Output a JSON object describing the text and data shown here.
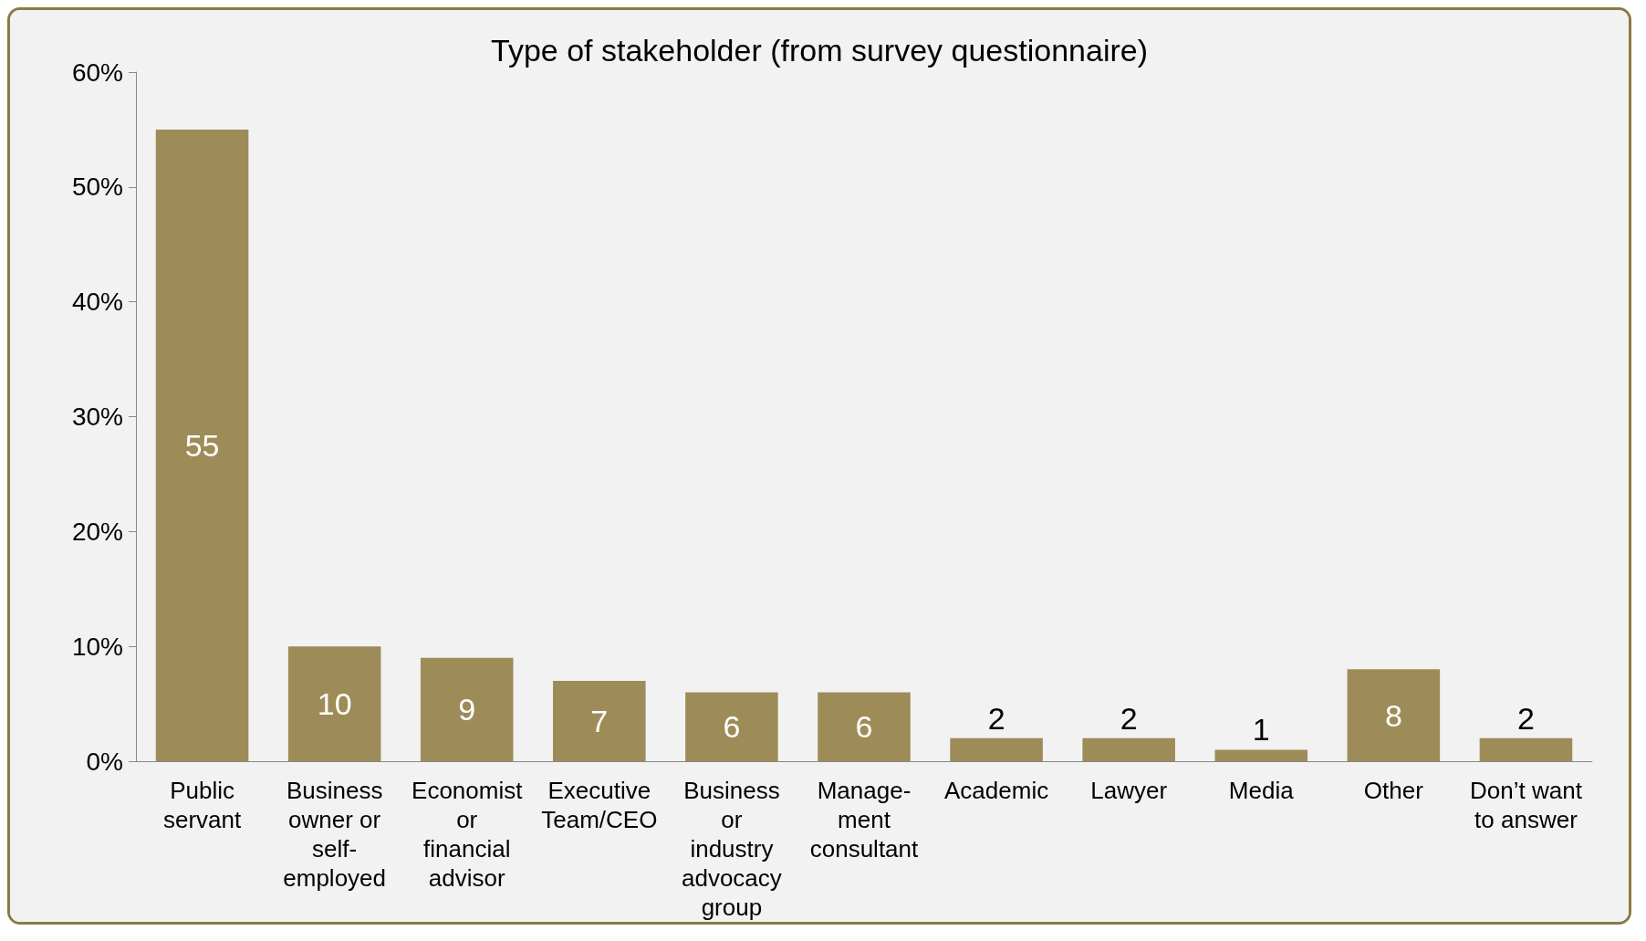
{
  "chart_data": {
    "type": "bar",
    "title": "Type of stakeholder (from survey questionnaire)",
    "categories": [
      "Public servant",
      "Business owner or self-employed",
      "Economist or financial advisor",
      "Executive Team/CEO",
      "Business or industry advocacy group",
      "Manage-ment consultant",
      "Academic",
      "Lawyer",
      "Media",
      "Other",
      "Don’t want to answer"
    ],
    "values": [
      55,
      10,
      9,
      7,
      6,
      6,
      2,
      2,
      1,
      8,
      2
    ],
    "color": "#9e8c58",
    "ylim": [
      0,
      60
    ],
    "yticks": [
      {
        "value": 0,
        "label": "0%"
      },
      {
        "value": 10,
        "label": "10%"
      },
      {
        "value": 20,
        "label": "20%"
      },
      {
        "value": 30,
        "label": "30%"
      },
      {
        "value": 40,
        "label": "40%"
      },
      {
        "value": 50,
        "label": "50%"
      },
      {
        "value": 60,
        "label": "60%"
      }
    ],
    "data_labels": true,
    "grid": false
  }
}
